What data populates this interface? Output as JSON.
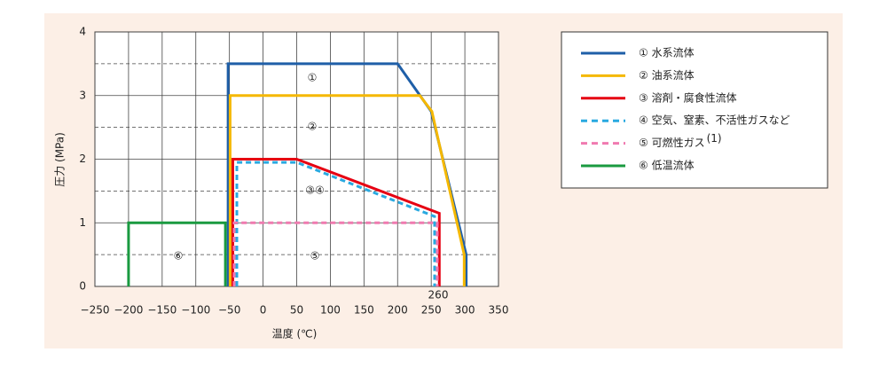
{
  "chart_data": {
    "type": "line",
    "x_label": "温度 (℃)",
    "y_label": "圧力 (MPa)",
    "xlim": [
      -250,
      350
    ],
    "ylim": [
      0,
      4
    ],
    "xticks": [
      {
        "value": -250,
        "label": "−250"
      },
      {
        "value": -200,
        "label": "−200"
      },
      {
        "value": -150,
        "label": "−150"
      },
      {
        "value": -100,
        "label": "−100"
      },
      {
        "value": -50,
        "label": "−50"
      },
      0,
      50,
      100,
      150,
      200,
      250,
      300,
      350
    ],
    "yticks": [
      0,
      1,
      2,
      3,
      4
    ],
    "minor_yticks": [
      0.5,
      1.5,
      2.5,
      3.5
    ],
    "grid": true,
    "series": [
      {
        "name": "① 水系流体",
        "color": "#1f5fa8",
        "dashed": false,
        "x": [
          -52,
          -52,
          200,
          250,
          302,
          302
        ],
        "values": [
          0,
          3.5,
          3.5,
          2.75,
          0.5,
          0
        ]
      },
      {
        "name": "② 油系流体",
        "color": "#f5b800",
        "dashed": false,
        "x": [
          -49,
          -49,
          233,
          251,
          299,
          299
        ],
        "values": [
          0,
          3,
          3,
          2.75,
          0.5,
          0
        ]
      },
      {
        "name": "③ 溶剤・腐食性流体",
        "color": "#e60012",
        "dashed": false,
        "x": [
          -45,
          -45,
          50,
          262,
          262
        ],
        "values": [
          0,
          2,
          2,
          1.15,
          0
        ]
      },
      {
        "name": "④ 空気、窒素、不活性ガスなど",
        "color": "#29a9e0",
        "dashed": true,
        "x": [
          -39,
          -39,
          50,
          255,
          255
        ],
        "values": [
          0,
          1.95,
          1.95,
          1.1,
          0
        ]
      },
      {
        "name": "⑤ 可燃性ガス",
        "footnote": "(1)",
        "color": "#f07ab0",
        "dashed": true,
        "x": [
          -43,
          -43,
          259,
          259
        ],
        "values": [
          0,
          1,
          1,
          0
        ]
      },
      {
        "name": "⑥ 低温流体",
        "color": "#1a9a40",
        "dashed": false,
        "x": [
          -200,
          -200,
          -56,
          -56
        ],
        "values": [
          0,
          1,
          1,
          0
        ]
      }
    ],
    "annotations": [
      "①",
      "②",
      "③④",
      "⑤",
      "⑥",
      "260"
    ]
  }
}
